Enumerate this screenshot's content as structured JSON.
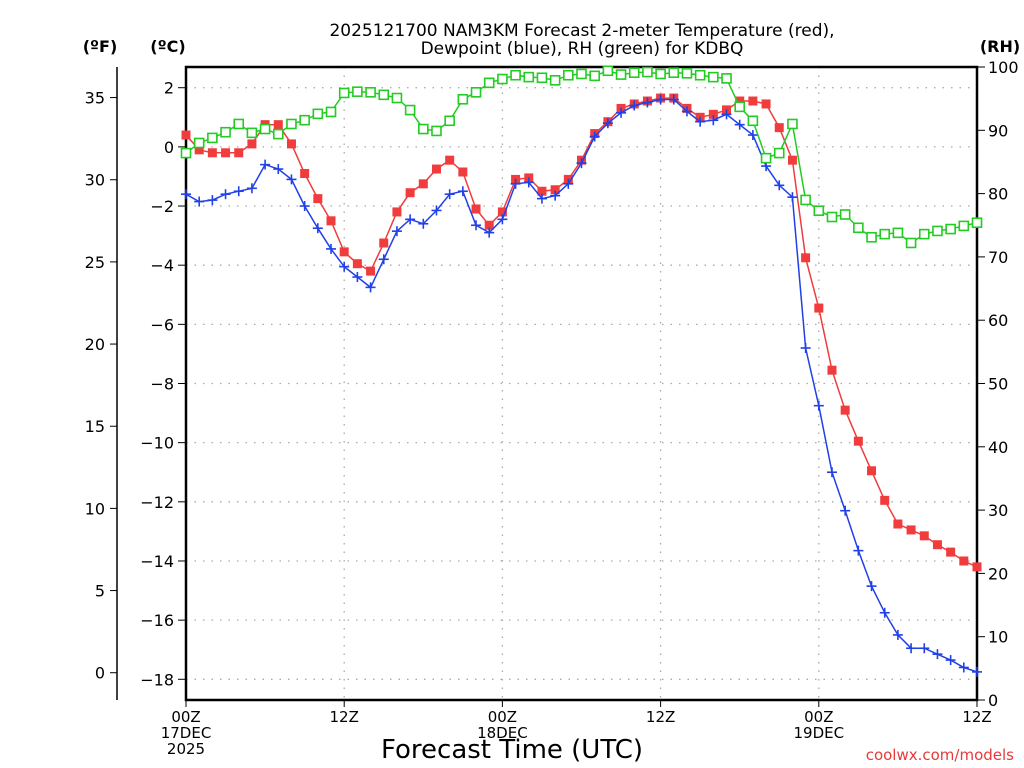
{
  "chart_data": {
    "type": "line",
    "title_line1": "2025121700 NAM3KM Forecast 2-meter Temperature (red),",
    "title_line2": "Dewpoint (blue), RH (green) for KDBQ",
    "xlabel": "Forecast Time (UTC)",
    "credit": "coolwx.com/models",
    "units": {
      "left_f": "(ºF)",
      "left_c": "(ºC)",
      "right": "(RH)"
    },
    "x_hours_range": [
      0,
      60
    ],
    "x_ticks": [
      {
        "hour": 0,
        "line1": "00Z",
        "line2": "17DEC",
        "line3": "2025"
      },
      {
        "hour": 12,
        "line1": "12Z",
        "line2": "",
        "line3": ""
      },
      {
        "hour": 24,
        "line1": "00Z",
        "line2": "18DEC",
        "line3": ""
      },
      {
        "hour": 36,
        "line1": "12Z",
        "line2": "",
        "line3": ""
      },
      {
        "hour": 48,
        "line1": "00Z",
        "line2": "19DEC",
        "line3": ""
      },
      {
        "hour": 60,
        "line1": "12Z",
        "line2": "",
        "line3": ""
      }
    ],
    "ylim_c": [
      -18.7,
      2.7
    ],
    "yticks_c": [
      2,
      0,
      -2,
      -4,
      -6,
      -8,
      -10,
      -12,
      -14,
      -16,
      -18
    ],
    "yticks_f": [
      35,
      30,
      25,
      20,
      15,
      10,
      5,
      0
    ],
    "ylim_rh": [
      0,
      100
    ],
    "yticks_rh": [
      100,
      90,
      80,
      70,
      60,
      50,
      40,
      30,
      20,
      10,
      0
    ],
    "grid": true,
    "series": [
      {
        "name": "Temperature",
        "axis": "C",
        "color": "#f03c3c",
        "marker": "filled-square",
        "values": [
          0.4,
          -0.1,
          -0.2,
          -0.2,
          -0.2,
          0.1,
          0.75,
          0.75,
          0.1,
          -0.9,
          -1.75,
          -2.5,
          -3.55,
          -3.95,
          -4.2,
          -3.25,
          -2.2,
          -1.55,
          -1.25,
          -0.75,
          -0.45,
          -0.85,
          -2.1,
          -2.65,
          -2.2,
          -1.1,
          -1.05,
          -1.5,
          -1.45,
          -1.1,
          -0.45,
          0.45,
          0.85,
          1.3,
          1.45,
          1.55,
          1.65,
          1.65,
          1.3,
          1.0,
          1.1,
          1.25,
          1.55,
          1.55,
          1.45,
          0.65,
          -0.45,
          -3.75,
          -5.45,
          -7.55,
          -8.9,
          -9.95,
          -10.95,
          -11.95,
          -12.75,
          -12.95,
          -13.15,
          -13.45,
          -13.7,
          -14.0,
          -14.2
        ]
      },
      {
        "name": "Dewpoint",
        "axis": "C",
        "color": "#2040e8",
        "marker": "plus",
        "values": [
          -1.6,
          -1.85,
          -1.8,
          -1.6,
          -1.5,
          -1.4,
          -0.6,
          -0.75,
          -1.1,
          -2.0,
          -2.75,
          -3.45,
          -4.05,
          -4.4,
          -4.75,
          -3.8,
          -2.85,
          -2.45,
          -2.6,
          -2.15,
          -1.6,
          -1.5,
          -2.65,
          -2.9,
          -2.45,
          -1.25,
          -1.2,
          -1.75,
          -1.65,
          -1.25,
          -0.55,
          0.35,
          0.8,
          1.15,
          1.4,
          1.5,
          1.6,
          1.6,
          1.2,
          0.85,
          0.9,
          1.1,
          0.75,
          0.4,
          -0.65,
          -1.3,
          -1.7,
          -6.8,
          -8.75,
          -11.0,
          -12.3,
          -13.65,
          -14.85,
          -15.75,
          -16.5,
          -16.95,
          -16.95,
          -17.15,
          -17.35,
          -17.6,
          -17.75
        ]
      },
      {
        "name": "RH",
        "axis": "RH",
        "color": "#22cc22",
        "marker": "open-square",
        "values": [
          86.4,
          88.0,
          88.8,
          89.7,
          91.0,
          89.6,
          90.2,
          89.4,
          91.0,
          91.6,
          92.6,
          92.9,
          95.9,
          96.1,
          96.0,
          95.6,
          95.1,
          93.2,
          90.2,
          89.9,
          91.5,
          94.9,
          96.0,
          97.5,
          98.1,
          98.7,
          98.4,
          98.3,
          97.9,
          98.7,
          98.9,
          98.6,
          99.4,
          98.8,
          99.1,
          99.2,
          98.9,
          99.1,
          99.0,
          98.7,
          98.4,
          98.2,
          93.7,
          91.5,
          85.6,
          86.4,
          91.0,
          79.0,
          77.3,
          76.3,
          76.7,
          74.6,
          73.1,
          73.6,
          73.8,
          72.2,
          73.6,
          74.1,
          74.4,
          74.9,
          75.4
        ]
      }
    ]
  }
}
